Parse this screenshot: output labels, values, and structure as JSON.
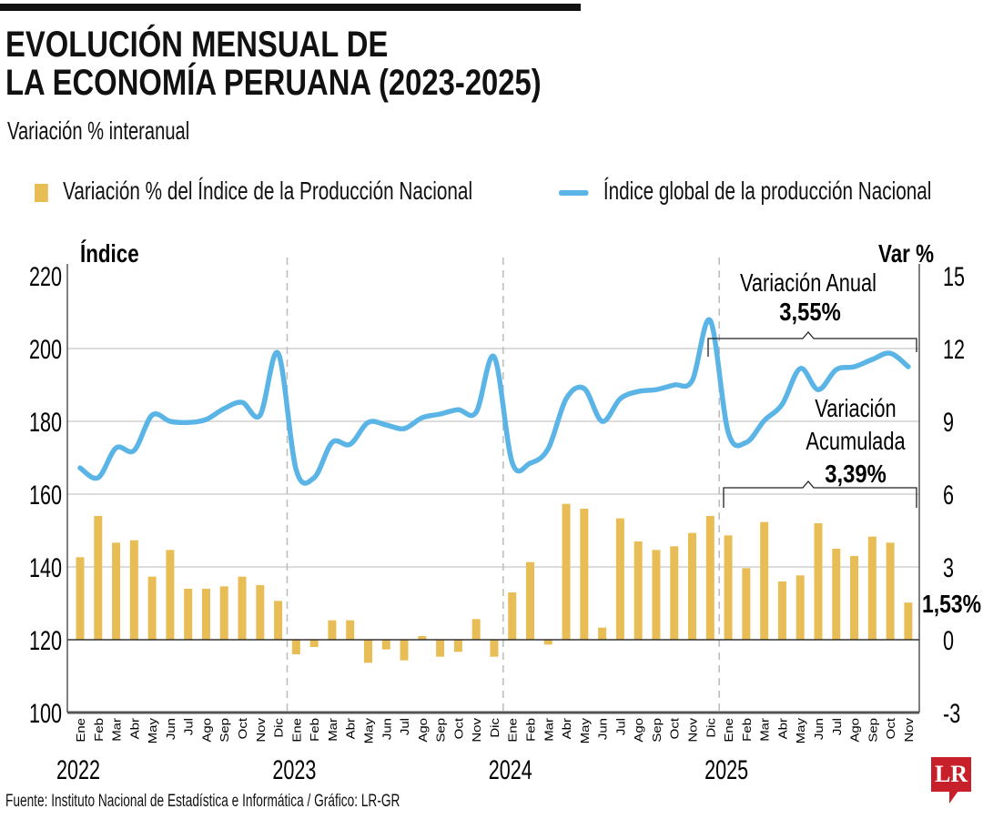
{
  "header": {
    "title_line1": "EVOLUCIÓN MENSUAL DE",
    "title_line2": "LA ECONOMÍA PERUANA (2023-2025)",
    "subtitle": "Variación % interanual"
  },
  "footer": {
    "source": "Fuente: Instituto Nacional de Estadística e Informática / Gráfico: LR-GR",
    "logo": "LR"
  },
  "annotations": {
    "anual_label": "Variación Anual",
    "anual_value": "3,55%",
    "acum_label1": "Variación",
    "acum_label2": "Acumulada",
    "acum_value": "3,39%",
    "last_value": "1,53%"
  },
  "chart_data": {
    "type": "bar+line",
    "title": "EVOLUCIÓN MENSUAL DE LA ECONOMÍA PERUANA (2023-2025)",
    "subtitle": "Variación % interanual",
    "legend_placement": "top",
    "grid": true,
    "colors": {
      "bars": "#e8bd55",
      "line": "#5bb4e6"
    },
    "y_left": {
      "label": "Índice",
      "ylim": [
        100,
        220
      ],
      "ticks": [
        "100",
        "120",
        "140",
        "160",
        "180",
        "200",
        "220"
      ]
    },
    "y_right": {
      "label": "Var %",
      "ylim": [
        -3,
        15
      ],
      "ticks": [
        "-3",
        "0",
        "3",
        "6",
        "9",
        "12",
        "15"
      ]
    },
    "years": [
      "2022",
      "2023",
      "2024",
      "2025"
    ],
    "months": [
      "Ene",
      "Feb",
      "Mar",
      "Abr",
      "May",
      "Jun",
      "Jul",
      "Ago",
      "Sep",
      "Oct",
      "Nov",
      "Dic"
    ],
    "series": [
      {
        "name": "Variación % del Índice de la Producción Nacional",
        "type": "bar",
        "axis": "right",
        "values": [
          3.4,
          5.1,
          4.0,
          4.1,
          2.6,
          3.7,
          2.1,
          2.1,
          2.2,
          2.6,
          2.25,
          1.6,
          -0.6,
          -0.3,
          0.8,
          0.8,
          -0.95,
          -0.4,
          -0.85,
          0.15,
          -0.7,
          -0.5,
          0.85,
          -0.7,
          1.95,
          3.2,
          -0.2,
          5.6,
          5.4,
          0.5,
          5.0,
          4.05,
          3.7,
          3.85,
          4.4,
          5.1,
          4.3,
          2.95,
          4.85,
          2.4,
          2.65,
          4.8,
          3.75,
          3.45,
          4.25,
          4.0,
          1.53
        ]
      },
      {
        "name": "Índice global de la producción Nacional",
        "type": "line",
        "axis": "left",
        "values": [
          167.2,
          164.5,
          172.7,
          172.0,
          181.7,
          180.0,
          179.7,
          180.5,
          183.5,
          185.2,
          181.7,
          198.7,
          166.7,
          164.5,
          174.2,
          173.7,
          179.7,
          179.0,
          178.0,
          181.0,
          182.0,
          183.2,
          182.5,
          197.7,
          168.7,
          168.5,
          172.5,
          186.2,
          189.0,
          180.0,
          186.2,
          188.2,
          188.7,
          190.0,
          191.2,
          207.7,
          177.0,
          174.2,
          180.2,
          184.7,
          194.5,
          188.7,
          194.2,
          195.0,
          197.0,
          198.7,
          195.0
        ]
      }
    ]
  }
}
